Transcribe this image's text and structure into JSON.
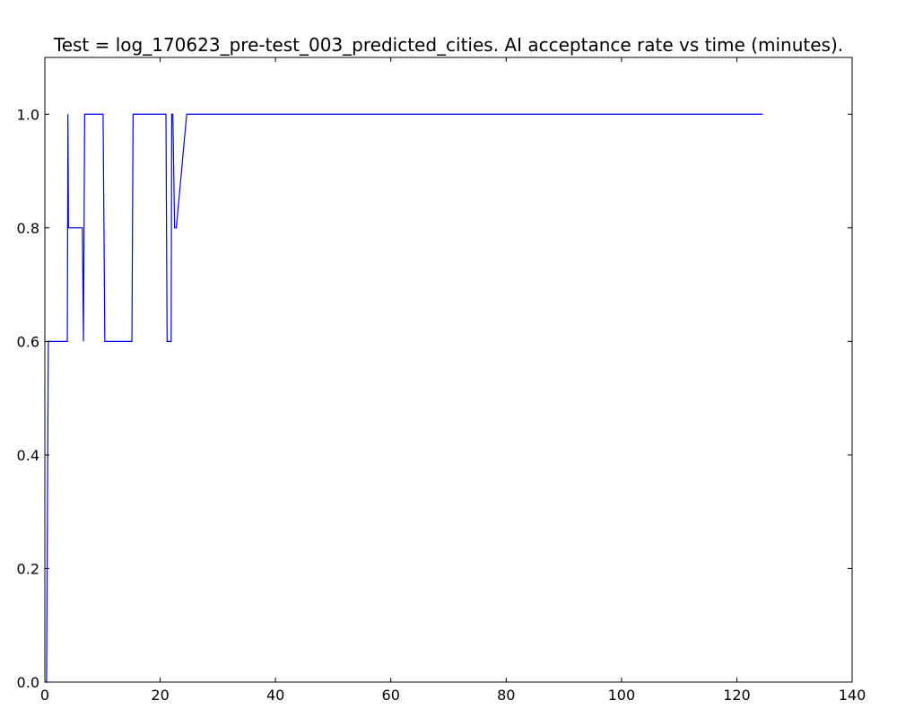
{
  "chart_data": {
    "type": "line",
    "title": "Test = log_170623_pre-test_003_predicted_cities. AI acceptance rate vs time (minutes).",
    "xlabel": "",
    "ylabel": "",
    "xlim": [
      0,
      140
    ],
    "ylim": [
      0,
      1.1
    ],
    "grid": false,
    "x_ticks": [
      0,
      20,
      40,
      60,
      80,
      100,
      120,
      140
    ],
    "y_ticks": [
      0.0,
      0.2,
      0.4,
      0.6,
      0.8,
      1.0
    ],
    "x_tick_labels": [
      "0",
      "20",
      "40",
      "60",
      "80",
      "100",
      "120",
      "140"
    ],
    "y_tick_labels": [
      "0.0",
      "0.2",
      "0.4",
      "0.6",
      "0.8",
      "1.0"
    ],
    "series": [
      {
        "color": "#0000ff",
        "x": [
          0.0,
          0.3,
          0.6,
          3.9,
          4.0,
          4.1,
          6.5,
          6.7,
          6.9,
          10.1,
          10.4,
          15.1,
          15.3,
          21.0,
          21.2,
          21.9,
          22.0,
          22.2,
          22.5,
          22.8,
          24.6,
          124.5
        ],
        "y": [
          0.0,
          0.0,
          0.6,
          0.6,
          1.0,
          0.8,
          0.8,
          0.6,
          1.0,
          1.0,
          0.6,
          0.6,
          1.0,
          1.0,
          0.6,
          0.6,
          1.0,
          1.0,
          0.8,
          0.8,
          1.0,
          1.0
        ]
      }
    ]
  }
}
